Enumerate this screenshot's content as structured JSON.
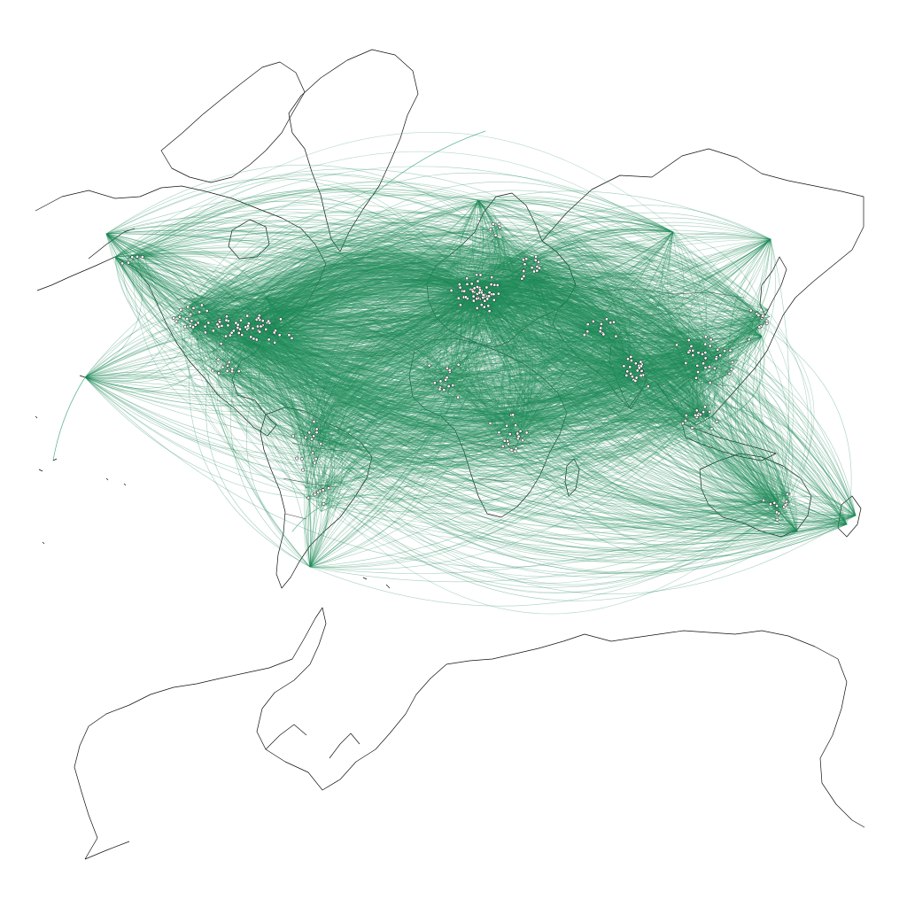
{
  "colors": {
    "background": "#ffffff",
    "coastline": "#111111",
    "route": "#1e8a57",
    "route_light": "#3fa777",
    "airport_fill": "#ffffff"
  },
  "map": {
    "kind": "world-flight-routes",
    "projection": "equirectangular-stretched",
    "labels_shown": false
  }
}
